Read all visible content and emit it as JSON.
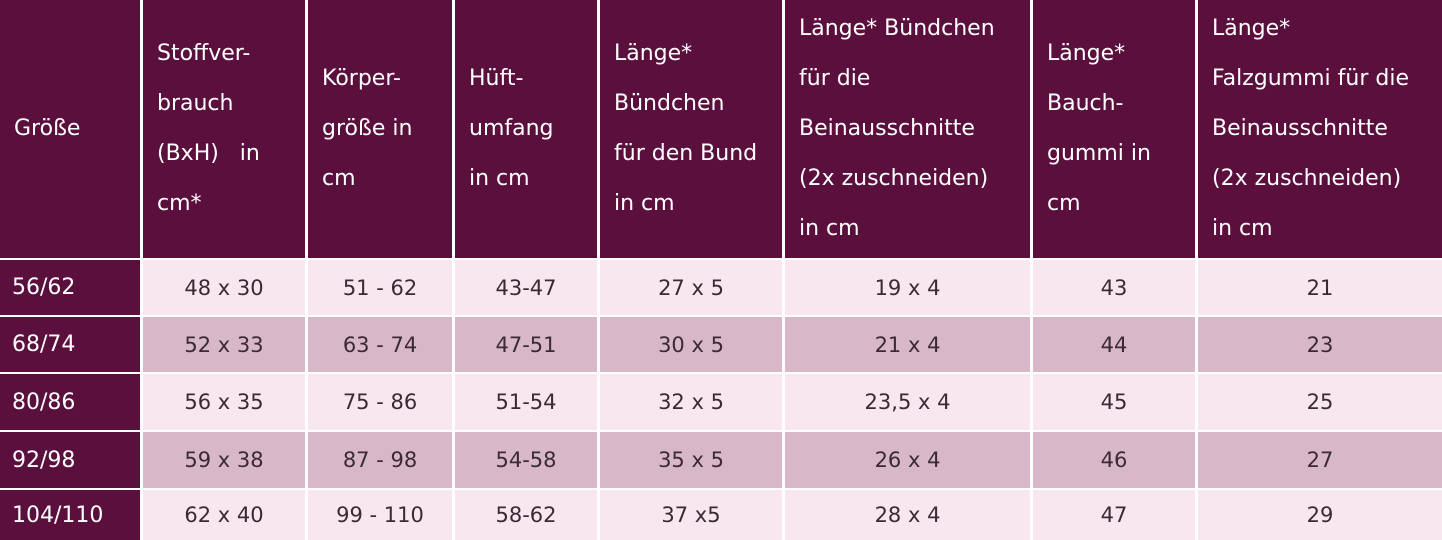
{
  "header": {
    "columns": [
      [
        "Größe"
      ],
      [
        "Stoffver-",
        "brauch",
        "(BxH)   in",
        "cm*"
      ],
      [
        "Körper-",
        "größe in",
        "cm"
      ],
      [
        "Hüft-",
        "umfang",
        "in cm"
      ],
      [
        "Länge*",
        "Bündchen",
        "für den Bund",
        "in cm"
      ],
      [
        "Länge* Bündchen",
        "für die",
        "Beinausschnitte",
        "(2x zuschneiden)",
        "in cm"
      ],
      [
        "Länge*",
        "Bauch-",
        "gummi in",
        "cm"
      ],
      [
        "Länge*",
        "Falzgummi für die",
        "Beinausschnitte",
        "(2x zuschneiden)",
        "in cm"
      ]
    ]
  },
  "table": {
    "rows": [
      [
        "56/62",
        "48 x 30",
        "51 - 62",
        "43-47",
        "27 x 5",
        "19 x 4",
        "43",
        "21"
      ],
      [
        "68/74",
        "52 x 33",
        "63 - 74",
        "47-51",
        "30 x 5",
        "21 x 4",
        "44",
        "23"
      ],
      [
        "80/86",
        "56 x 35",
        "75 - 86",
        "51-54",
        "32 x 5",
        "23,5 x 4",
        "45",
        "25"
      ],
      [
        "92/98",
        "59 x 38",
        "87 - 98",
        "54-58",
        "35 x 5",
        "26 x 4",
        "46",
        "27"
      ],
      [
        "104/110",
        "62 x 40",
        "99 - 110",
        "58-62",
        "37 x5",
        "28 x 4",
        "47",
        "29"
      ]
    ]
  }
}
